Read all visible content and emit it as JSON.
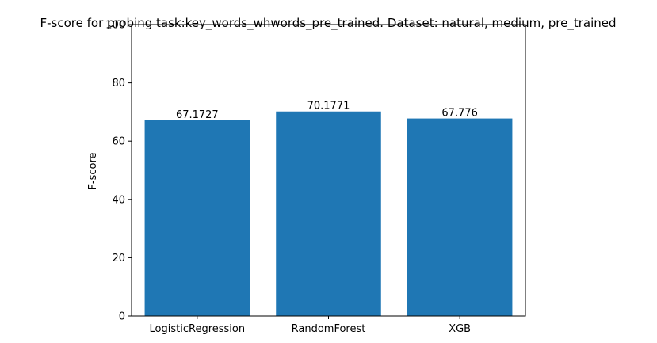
{
  "chart_data": {
    "type": "bar",
    "title": "F-score for probing task:key_words_whwords_pre_trained. Dataset: natural, medium, pre_trained",
    "xlabel": "",
    "ylabel": "F-score",
    "categories": [
      "LogisticRegression",
      "RandomForest",
      "XGB"
    ],
    "values": [
      67.1727,
      70.1771,
      67.776
    ],
    "value_labels": [
      "67.1727",
      "70.1771",
      "67.776"
    ],
    "ylim": [
      0,
      100
    ],
    "yticks": [
      0,
      20,
      40,
      60,
      80,
      100
    ],
    "ytick_labels": [
      "0",
      "20",
      "40",
      "60",
      "80",
      "100"
    ],
    "bar_color": "#1f77b4",
    "grid": false,
    "legend": "none"
  }
}
